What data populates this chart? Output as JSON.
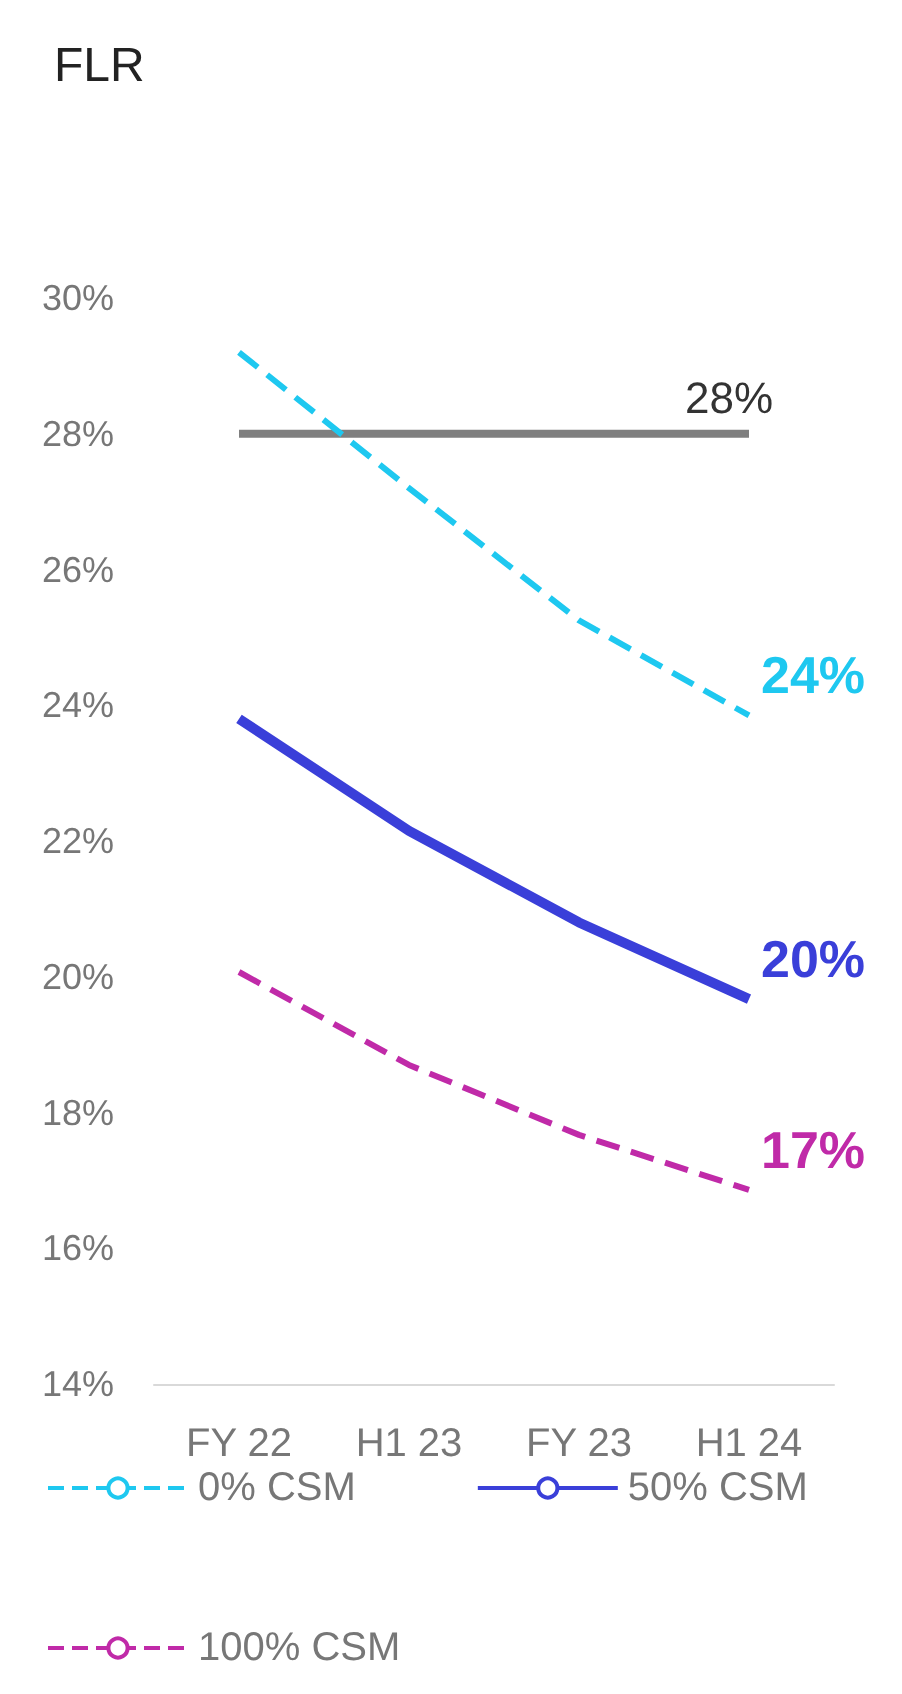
{
  "chart_data": {
    "type": "line",
    "title": "FLR",
    "categories": [
      "FY 22",
      "H1 23",
      "FY 23",
      "H1 24"
    ],
    "series": [
      {
        "name": "0% CSM",
        "color": "#1ec8f0",
        "line_style": "dashed",
        "values": [
          29.2,
          27.2,
          25.25,
          23.85
        ],
        "value_labels": [
          null,
          null,
          null,
          "24%"
        ]
      },
      {
        "name": "50% CSM",
        "color": "#3a3fd9",
        "line_style": "solid",
        "values": [
          23.8,
          22.15,
          20.8,
          19.67
        ],
        "value_labels": [
          null,
          null,
          null,
          "20%"
        ]
      },
      {
        "name": "100% CSM",
        "color": "#c02aa8",
        "line_style": "dashed",
        "values": [
          20.07,
          18.7,
          17.67,
          16.86
        ],
        "value_labels": [
          null,
          null,
          null,
          "17%"
        ]
      },
      {
        "color": "#7f7f7f",
        "line_style": "solid",
        "values": [
          28,
          28,
          28,
          28
        ],
        "value_labels": [
          null,
          null,
          null,
          "28%"
        ]
      }
    ],
    "ylim": [
      14,
      30
    ],
    "yticks": [
      {
        "value": 14,
        "label": "14%"
      },
      {
        "value": 16,
        "label": "16%"
      },
      {
        "value": 18,
        "label": "18%"
      },
      {
        "value": 20,
        "label": "20%"
      },
      {
        "value": 22,
        "label": "22%"
      },
      {
        "value": 24,
        "label": "24%"
      },
      {
        "value": 26,
        "label": "26%"
      },
      {
        "value": 28,
        "label": "28%"
      },
      {
        "value": 30,
        "label": "30%"
      }
    ],
    "grid": false,
    "legend": "bottom",
    "marker": "none"
  }
}
